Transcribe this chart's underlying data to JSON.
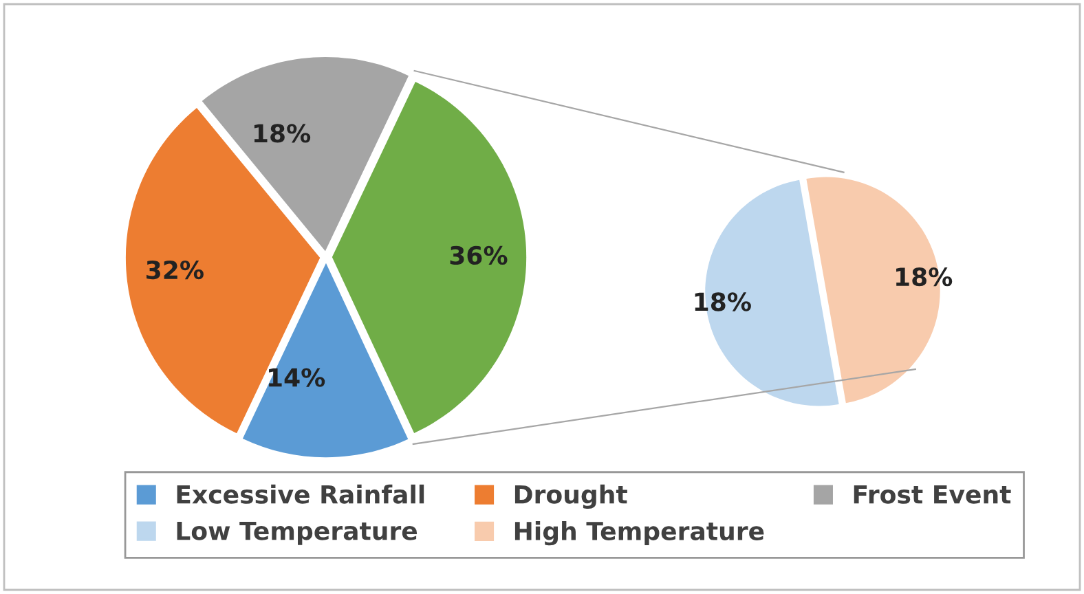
{
  "chart_data": [
    {
      "type": "pie",
      "categories": [
        "Excessive Rainfall",
        "Drought",
        "Frost Event",
        null
      ],
      "values": [
        14,
        32,
        18,
        36
      ],
      "colors": [
        "#5b9bd5",
        "#ed7d31",
        "#a5a5a5",
        "#70ad47"
      ],
      "value_labels": [
        "14%",
        "32%",
        "18%",
        "36%"
      ],
      "legend": "bottom"
    },
    {
      "type": "pie",
      "categories": [
        "Low Temperature",
        "High Temperature"
      ],
      "values": [
        18,
        18
      ],
      "colors": [
        "#bdd7ee",
        "#f8cbad"
      ],
      "value_labels": [
        "18%",
        "18%"
      ],
      "legend": "bottom"
    }
  ]
}
